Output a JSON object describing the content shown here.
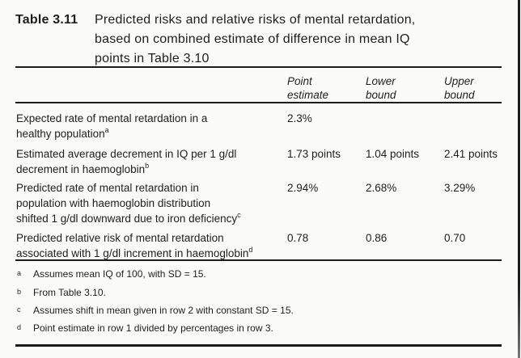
{
  "colors": {
    "text": "#1e1e1e",
    "rule": "#1c1c1c",
    "background": "#fbfbf9"
  },
  "caption": {
    "label": "Table 3.11",
    "text": "Predicted risks and relative risks of mental retardation,\nbased on combined estimate of difference in mean IQ\npoints in Table 3.10"
  },
  "table": {
    "columns": [
      {
        "label": "Point\nestimate"
      },
      {
        "label": "Lower\nbound"
      },
      {
        "label": "Upper\nbound"
      }
    ],
    "rows": [
      {
        "label": "Expected rate of mental retardation in a\nhealthy population",
        "sup": "a",
        "point": "2.3%",
        "lower": "",
        "upper": ""
      },
      {
        "label": "Estimated average decrement in IQ per 1 g/dl\ndecrement in haemoglobin",
        "sup": "b",
        "point": "1.73 points",
        "lower": "1.04 points",
        "upper": "2.41 points"
      },
      {
        "label": "Predicted rate of mental retardation in\npopulation with haemoglobin distribution\nshifted 1 g/dl downward due to iron deficiency",
        "sup": "c",
        "point": "2.94%",
        "lower": "2.68%",
        "upper": "3.29%"
      },
      {
        "label": "Predicted relative risk of mental retardation\nassociated with 1 g/dl increment in haemoglobin",
        "sup": "d",
        "point": "0.78",
        "lower": "0.86",
        "upper": "0.70"
      }
    ]
  },
  "footnotes": [
    {
      "marker": "a",
      "text": "Assumes mean IQ of 100, with SD = 15."
    },
    {
      "marker": "b",
      "text": "From Table 3.10."
    },
    {
      "marker": "c",
      "text": "Assumes shift in mean given in row 2 with constant SD = 15."
    },
    {
      "marker": "d",
      "text": "Point estimate in row 1 divided by percentages in row 3."
    }
  ]
}
